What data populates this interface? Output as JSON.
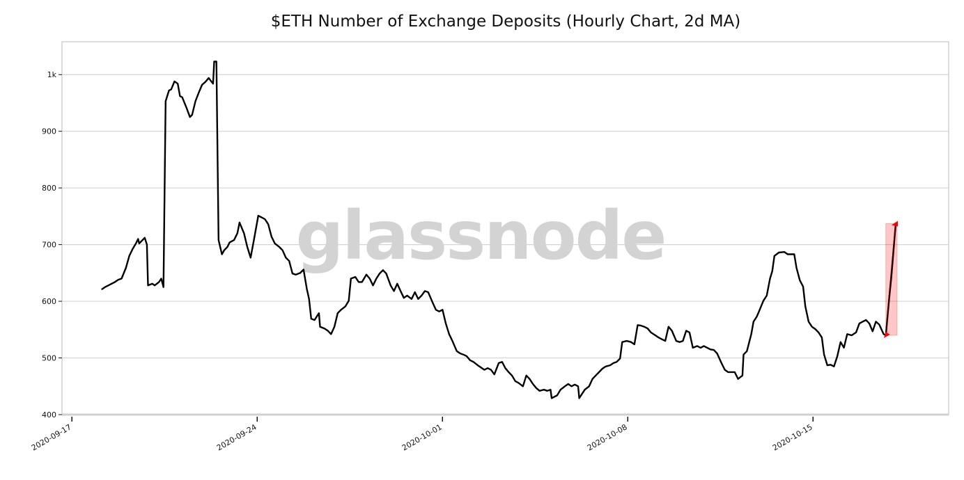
{
  "chart_data": {
    "type": "line",
    "title": "$ETH Number of Exchange Deposits (Hourly Chart, 2d MA)",
    "xlabel": "",
    "ylabel": "",
    "watermark": "glassnode",
    "grid": "horizontal",
    "xlim": [
      "2020-09-16T15:00",
      "2020-10-20T03:00"
    ],
    "ylim": [
      400,
      1058
    ],
    "yticks": [
      {
        "value": 400,
        "label": "400"
      },
      {
        "value": 500,
        "label": "500"
      },
      {
        "value": 600,
        "label": "600"
      },
      {
        "value": 700,
        "label": "700"
      },
      {
        "value": 800,
        "label": "800"
      },
      {
        "value": 900,
        "label": "900"
      },
      {
        "value": 1000,
        "label": "1k"
      }
    ],
    "xticks": [
      {
        "value": "2020-09-17T00:00",
        "label": "2020-09-17"
      },
      {
        "value": "2020-09-24T00:00",
        "label": "2020-09-24"
      },
      {
        "value": "2020-10-01T00:00",
        "label": "2020-10-01"
      },
      {
        "value": "2020-10-08T00:00",
        "label": "2020-10-08"
      },
      {
        "value": "2020-10-15T00:00",
        "label": "2020-10-15"
      }
    ],
    "line_color": "#000000",
    "highlight_color": "#ff0000",
    "highlight": {
      "start": [
        "2020-10-17T18:00",
        540
      ],
      "end": [
        "2020-10-18T03:00",
        737
      ]
    },
    "series": [
      {
        "points": [
          [
            "2020-09-18T03:00",
            621
          ],
          [
            "2020-09-18T06:00",
            625
          ],
          [
            "2020-09-18T09:00",
            628
          ],
          [
            "2020-09-18T12:00",
            631
          ],
          [
            "2020-09-18T15:00",
            634
          ],
          [
            "2020-09-18T18:00",
            638
          ],
          [
            "2020-09-18T21:00",
            640
          ],
          [
            "2020-09-19T01:00",
            659
          ],
          [
            "2020-09-19T04:00",
            680
          ],
          [
            "2020-09-19T07:00",
            692
          ],
          [
            "2020-09-19T10:00",
            702
          ],
          [
            "2020-09-19T12:00",
            710
          ],
          [
            "2020-09-19T13:00",
            702
          ],
          [
            "2020-09-19T16:00",
            708
          ],
          [
            "2020-09-19T18:00",
            712
          ],
          [
            "2020-09-19T20:00",
            700
          ],
          [
            "2020-09-19T21:00",
            628
          ],
          [
            "2020-09-20T01:00",
            631
          ],
          [
            "2020-09-20T03:00",
            628
          ],
          [
            "2020-09-20T07:00",
            634
          ],
          [
            "2020-09-20T09:00",
            640
          ],
          [
            "2020-09-20T11:00",
            625
          ],
          [
            "2020-09-20T13:00",
            953
          ],
          [
            "2020-09-20T16:00",
            972
          ],
          [
            "2020-09-20T18:00",
            974
          ],
          [
            "2020-09-20T21:00",
            988
          ],
          [
            "2020-09-21T00:00",
            984
          ],
          [
            "2020-09-21T02:00",
            962
          ],
          [
            "2020-09-21T04:00",
            960
          ],
          [
            "2020-09-21T08:00",
            941
          ],
          [
            "2020-09-21T11:00",
            925
          ],
          [
            "2020-09-21T13:00",
            929
          ],
          [
            "2020-09-21T16:00",
            953
          ],
          [
            "2020-09-21T19:00",
            968
          ],
          [
            "2020-09-21T22:00",
            982
          ],
          [
            "2020-09-22T01:00",
            987
          ],
          [
            "2020-09-22T04:00",
            994
          ],
          [
            "2020-09-22T08:00",
            984
          ],
          [
            "2020-09-22T09:00",
            1023
          ],
          [
            "2020-09-22T11:00",
            1023
          ],
          [
            "2020-09-22T13:00",
            708
          ],
          [
            "2020-09-22T16:00",
            683
          ],
          [
            "2020-09-22T18:00",
            690
          ],
          [
            "2020-09-22T21:00",
            696
          ],
          [
            "2020-09-22T23:00",
            704
          ],
          [
            "2020-09-23T03:00",
            708
          ],
          [
            "2020-09-23T06:00",
            720
          ],
          [
            "2020-09-23T08:00",
            739
          ],
          [
            "2020-09-23T12:00",
            720
          ],
          [
            "2020-09-23T15:00",
            696
          ],
          [
            "2020-09-23T18:00",
            677
          ],
          [
            "2020-09-23T21:00",
            708
          ],
          [
            "2020-09-24T01:00",
            751
          ],
          [
            "2020-09-24T04:00",
            748
          ],
          [
            "2020-09-24T07:00",
            745
          ],
          [
            "2020-09-24T10:00",
            736
          ],
          [
            "2020-09-24T13:00",
            714
          ],
          [
            "2020-09-24T16:00",
            702
          ],
          [
            "2020-09-24T20:00",
            696
          ],
          [
            "2020-09-24T23:00",
            690
          ],
          [
            "2020-09-25T02:00",
            677
          ],
          [
            "2020-09-25T05:00",
            671
          ],
          [
            "2020-09-25T08:00",
            649
          ],
          [
            "2020-09-25T11:00",
            647
          ],
          [
            "2020-09-25T15:00",
            650
          ],
          [
            "2020-09-25T18:00",
            656
          ],
          [
            "2020-09-25T21:00",
            622
          ],
          [
            "2020-09-25T23:00",
            604
          ],
          [
            "2020-09-26T01:00",
            569
          ],
          [
            "2020-09-26T04:00",
            567
          ],
          [
            "2020-09-26T08:00",
            579
          ],
          [
            "2020-09-26T09:00",
            555
          ],
          [
            "2020-09-26T13:00",
            552
          ],
          [
            "2020-09-26T16:00",
            548
          ],
          [
            "2020-09-26T19:00",
            542
          ],
          [
            "2020-09-26T22:00",
            555
          ],
          [
            "2020-09-27T01:00",
            579
          ],
          [
            "2020-09-27T04:00",
            585
          ],
          [
            "2020-09-27T08:00",
            591
          ],
          [
            "2020-09-27T11:00",
            601
          ],
          [
            "2020-09-27T13:00",
            640
          ],
          [
            "2020-09-27T17:00",
            643
          ],
          [
            "2020-09-27T20:00",
            634
          ],
          [
            "2020-09-27T23:00",
            634
          ],
          [
            "2020-09-28T03:00",
            647
          ],
          [
            "2020-09-28T06:00",
            640
          ],
          [
            "2020-09-28T09:00",
            628
          ],
          [
            "2020-09-28T12:00",
            640
          ],
          [
            "2020-09-28T15:00",
            649
          ],
          [
            "2020-09-28T18:00",
            655
          ],
          [
            "2020-09-28T21:00",
            649
          ],
          [
            "2020-09-29T01:00",
            628
          ],
          [
            "2020-09-29T04:00",
            618
          ],
          [
            "2020-09-29T07:00",
            631
          ],
          [
            "2020-09-29T10:00",
            618
          ],
          [
            "2020-09-29T13:00",
            606
          ],
          [
            "2020-09-29T16:00",
            610
          ],
          [
            "2020-09-29T20:00",
            604
          ],
          [
            "2020-09-29T23:00",
            616
          ],
          [
            "2020-09-30T02:00",
            604
          ],
          [
            "2020-09-30T05:00",
            610
          ],
          [
            "2020-09-30T08:00",
            618
          ],
          [
            "2020-09-30T11:00",
            616
          ],
          [
            "2020-09-30T15:00",
            598
          ],
          [
            "2020-09-30T18:00",
            585
          ],
          [
            "2020-09-30T21:00",
            582
          ],
          [
            "2020-10-01T00:00",
            585
          ],
          [
            "2020-10-01T03:00",
            561
          ],
          [
            "2020-10-01T06:00",
            542
          ],
          [
            "2020-10-01T09:00",
            530
          ],
          [
            "2020-10-01T13:00",
            512
          ],
          [
            "2020-10-01T16:00",
            508
          ],
          [
            "2020-10-01T19:00",
            506
          ],
          [
            "2020-10-01T22:00",
            503
          ],
          [
            "2020-10-02T01:00",
            496
          ],
          [
            "2020-10-02T04:00",
            493
          ],
          [
            "2020-10-02T08:00",
            487
          ],
          [
            "2020-10-02T11:00",
            483
          ],
          [
            "2020-10-02T14:00",
            479
          ],
          [
            "2020-10-02T17:00",
            482
          ],
          [
            "2020-10-02T20:00",
            479
          ],
          [
            "2020-10-02T23:00",
            471
          ],
          [
            "2020-10-03T03:00",
            491
          ],
          [
            "2020-10-03T06:00",
            493
          ],
          [
            "2020-10-03T09:00",
            482
          ],
          [
            "2020-10-03T12:00",
            475
          ],
          [
            "2020-10-03T15:00",
            469
          ],
          [
            "2020-10-03T18:00",
            459
          ],
          [
            "2020-10-03T21:00",
            456
          ],
          [
            "2020-10-04T01:00",
            450
          ],
          [
            "2020-10-04T04:00",
            469
          ],
          [
            "2020-10-04T07:00",
            463
          ],
          [
            "2020-10-04T10:00",
            454
          ],
          [
            "2020-10-04T13:00",
            447
          ],
          [
            "2020-10-04T16:00",
            442
          ],
          [
            "2020-10-04T20:00",
            444
          ],
          [
            "2020-10-04T23:00",
            442
          ],
          [
            "2020-10-05T02:00",
            444
          ],
          [
            "2020-10-05T03:00",
            429
          ],
          [
            "2020-10-05T08:00",
            434
          ],
          [
            "2020-10-05T11:00",
            444
          ],
          [
            "2020-10-05T15:00",
            450
          ],
          [
            "2020-10-05T18:00",
            454
          ],
          [
            "2020-10-05T21:00",
            450
          ],
          [
            "2020-10-06T00:00",
            453
          ],
          [
            "2020-10-06T03:00",
            450
          ],
          [
            "2020-10-06T04:00",
            429
          ],
          [
            "2020-10-06T09:00",
            444
          ],
          [
            "2020-10-06T13:00",
            450
          ],
          [
            "2020-10-06T16:00",
            463
          ],
          [
            "2020-10-06T19:00",
            469
          ],
          [
            "2020-10-06T22:00",
            475
          ],
          [
            "2020-10-07T01:00",
            481
          ],
          [
            "2020-10-07T04:00",
            485
          ],
          [
            "2020-10-07T08:00",
            487
          ],
          [
            "2020-10-07T11:00",
            491
          ],
          [
            "2020-10-07T14:00",
            493
          ],
          [
            "2020-10-07T17:00",
            499
          ],
          [
            "2020-10-07T19:00",
            528
          ],
          [
            "2020-10-07T23:00",
            530
          ],
          [
            "2020-10-08T03:00",
            528
          ],
          [
            "2020-10-08T06:00",
            524
          ],
          [
            "2020-10-08T09:00",
            558
          ],
          [
            "2020-10-08T12:00",
            557
          ],
          [
            "2020-10-08T15:00",
            555
          ],
          [
            "2020-10-08T18:00",
            552
          ],
          [
            "2020-10-08T21:00",
            545
          ],
          [
            "2020-10-09T01:00",
            540
          ],
          [
            "2020-10-09T04:00",
            536
          ],
          [
            "2020-10-09T07:00",
            533
          ],
          [
            "2020-10-09T10:00",
            530
          ],
          [
            "2020-10-09T13:00",
            555
          ],
          [
            "2020-10-09T16:00",
            548
          ],
          [
            "2020-10-09T20:00",
            530
          ],
          [
            "2020-10-09T23:00",
            528
          ],
          [
            "2020-10-10T02:00",
            530
          ],
          [
            "2020-10-10T05:00",
            548
          ],
          [
            "2020-10-10T08:00",
            545
          ],
          [
            "2020-10-10T11:00",
            518
          ],
          [
            "2020-10-10T15:00",
            521
          ],
          [
            "2020-10-10T18:00",
            518
          ],
          [
            "2020-10-10T21:00",
            521
          ],
          [
            "2020-10-11T00:00",
            518
          ],
          [
            "2020-10-11T03:00",
            515
          ],
          [
            "2020-10-11T06:00",
            514
          ],
          [
            "2020-10-11T09:00",
            508
          ],
          [
            "2020-10-11T13:00",
            491
          ],
          [
            "2020-10-11T16:00",
            479
          ],
          [
            "2020-10-11T19:00",
            475
          ],
          [
            "2020-10-11T22:00",
            475
          ],
          [
            "2020-10-12T01:00",
            475
          ],
          [
            "2020-10-12T04:00",
            463
          ],
          [
            "2020-10-12T08:00",
            469
          ],
          [
            "2020-10-12T09:00",
            506
          ],
          [
            "2020-10-12T12:00",
            512
          ],
          [
            "2020-10-12T16:00",
            542
          ],
          [
            "2020-10-12T18:00",
            564
          ],
          [
            "2020-10-12T21:00",
            573
          ],
          [
            "2020-10-12T23:00",
            582
          ],
          [
            "2020-10-13T03:00",
            601
          ],
          [
            "2020-10-13T06:00",
            610
          ],
          [
            "2020-10-13T09:00",
            640
          ],
          [
            "2020-10-13T11:00",
            653
          ],
          [
            "2020-10-13T13:00",
            680
          ],
          [
            "2020-10-13T17:00",
            686
          ],
          [
            "2020-10-13T22:00",
            687
          ],
          [
            "2020-10-14T01:00",
            683
          ],
          [
            "2020-10-14T04:00",
            683
          ],
          [
            "2020-10-14T07:00",
            683
          ],
          [
            "2020-10-14T09:00",
            659
          ],
          [
            "2020-10-14T12:00",
            637
          ],
          [
            "2020-10-14T15:00",
            626
          ],
          [
            "2020-10-14T17:00",
            591
          ],
          [
            "2020-10-14T20:00",
            564
          ],
          [
            "2020-10-14T23:00",
            555
          ],
          [
            "2020-10-15T02:00",
            551
          ],
          [
            "2020-10-15T05:00",
            545
          ],
          [
            "2020-10-15T08:00",
            536
          ],
          [
            "2020-10-15T10:00",
            506
          ],
          [
            "2020-10-15T13:00",
            487
          ],
          [
            "2020-10-15T16:00",
            488
          ],
          [
            "2020-10-15T19:00",
            485
          ],
          [
            "2020-10-15T22:00",
            503
          ],
          [
            "2020-10-16T01:00",
            528
          ],
          [
            "2020-10-16T04:00",
            518
          ],
          [
            "2020-10-16T07:00",
            542
          ],
          [
            "2020-10-16T11:00",
            540
          ],
          [
            "2020-10-16T15:00",
            545
          ],
          [
            "2020-10-16T18:00",
            561
          ],
          [
            "2020-10-16T21:00",
            564
          ],
          [
            "2020-10-17T00:00",
            567
          ],
          [
            "2020-10-17T03:00",
            561
          ],
          [
            "2020-10-17T06:00",
            547
          ],
          [
            "2020-10-17T09:00",
            564
          ],
          [
            "2020-10-17T12:00",
            559
          ],
          [
            "2020-10-17T16:00",
            542
          ],
          [
            "2020-10-17T18:00",
            540
          ],
          [
            "2020-10-17T21:00",
            604
          ],
          [
            "2020-10-17T23:00",
            643
          ],
          [
            "2020-10-18T03:00",
            737
          ]
        ]
      }
    ]
  }
}
